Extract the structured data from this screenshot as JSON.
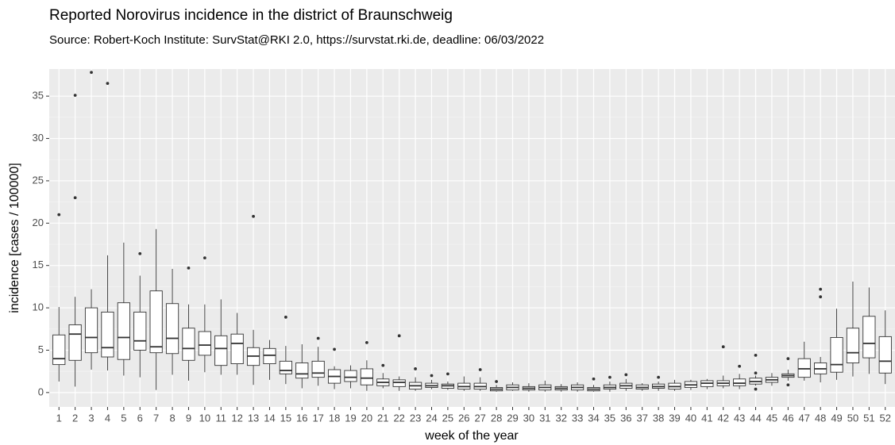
{
  "chart_data": {
    "type": "boxplot",
    "title": "Reported Norovirus incidence in the district of Braunschweig",
    "subtitle": "Source: Robert-Koch Institute: SurvStat@RKI 2.0, https://survstat.rki.de, deadline: 06/03/2022",
    "x_label": "week of the year",
    "y_label": "incidence [cases / 100000]",
    "categories": [
      "1",
      "2",
      "3",
      "4",
      "5",
      "6",
      "7",
      "8",
      "9",
      "10",
      "11",
      "12",
      "13",
      "14",
      "15",
      "16",
      "17",
      "18",
      "19",
      "20",
      "21",
      "22",
      "23",
      "24",
      "25",
      "26",
      "27",
      "28",
      "29",
      "30",
      "31",
      "32",
      "33",
      "34",
      "35",
      "36",
      "37",
      "38",
      "39",
      "40",
      "41",
      "42",
      "43",
      "44",
      "45",
      "46",
      "47",
      "48",
      "49",
      "50",
      "51",
      "52"
    ],
    "boxes": [
      {
        "low": 1.3,
        "q1": 3.3,
        "median": 4.0,
        "q3": 6.8,
        "high": 10.1,
        "outliers": [
          21.0
        ]
      },
      {
        "low": 0.7,
        "q1": 3.8,
        "median": 6.9,
        "q3": 8.0,
        "high": 11.3,
        "outliers": [
          23.0,
          35.1
        ]
      },
      {
        "low": 2.7,
        "q1": 4.7,
        "median": 6.5,
        "q3": 10.0,
        "high": 12.2,
        "outliers": [
          37.8
        ]
      },
      {
        "low": 2.6,
        "q1": 4.2,
        "median": 5.3,
        "q3": 9.5,
        "high": 16.2,
        "outliers": [
          36.5
        ]
      },
      {
        "low": 2.0,
        "q1": 3.9,
        "median": 6.5,
        "q3": 10.6,
        "high": 17.7,
        "outliers": []
      },
      {
        "low": 1.8,
        "q1": 5.0,
        "median": 6.1,
        "q3": 9.5,
        "high": 13.8,
        "outliers": [
          16.4
        ]
      },
      {
        "low": 0.3,
        "q1": 4.7,
        "median": 5.4,
        "q3": 12.0,
        "high": 19.3,
        "outliers": []
      },
      {
        "low": 2.1,
        "q1": 4.6,
        "median": 6.4,
        "q3": 10.5,
        "high": 14.6,
        "outliers": []
      },
      {
        "low": 1.4,
        "q1": 3.8,
        "median": 5.2,
        "q3": 7.6,
        "high": 10.4,
        "outliers": [
          14.7
        ]
      },
      {
        "low": 2.4,
        "q1": 4.4,
        "median": 5.6,
        "q3": 7.2,
        "high": 10.4,
        "outliers": [
          15.9
        ]
      },
      {
        "low": 2.1,
        "q1": 3.2,
        "median": 5.2,
        "q3": 6.7,
        "high": 11.0,
        "outliers": []
      },
      {
        "low": 2.1,
        "q1": 3.4,
        "median": 5.8,
        "q3": 6.9,
        "high": 9.4,
        "outliers": []
      },
      {
        "low": 0.9,
        "q1": 3.2,
        "median": 4.3,
        "q3": 5.3,
        "high": 7.4,
        "outliers": [
          20.8
        ]
      },
      {
        "low": 1.5,
        "q1": 3.4,
        "median": 4.4,
        "q3": 5.2,
        "high": 6.2,
        "outliers": []
      },
      {
        "low": 1.0,
        "q1": 2.2,
        "median": 2.6,
        "q3": 3.7,
        "high": 5.5,
        "outliers": [
          8.9
        ]
      },
      {
        "low": 0.5,
        "q1": 1.7,
        "median": 2.2,
        "q3": 3.5,
        "high": 5.7,
        "outliers": []
      },
      {
        "low": 0.8,
        "q1": 1.8,
        "median": 2.3,
        "q3": 3.7,
        "high": 5.4,
        "outliers": [
          6.4
        ]
      },
      {
        "low": 0.4,
        "q1": 1.1,
        "median": 1.9,
        "q3": 2.7,
        "high": 3.1,
        "outliers": [
          5.1
        ]
      },
      {
        "low": 0.5,
        "q1": 1.3,
        "median": 1.8,
        "q3": 2.6,
        "high": 3.2,
        "outliers": []
      },
      {
        "low": 0.2,
        "q1": 0.9,
        "median": 1.7,
        "q3": 2.8,
        "high": 3.8,
        "outliers": [
          5.9
        ]
      },
      {
        "low": 0.5,
        "q1": 0.8,
        "median": 1.2,
        "q3": 1.6,
        "high": 2.3,
        "outliers": [
          3.2
        ]
      },
      {
        "low": 0.2,
        "q1": 0.7,
        "median": 1.2,
        "q3": 1.5,
        "high": 1.9,
        "outliers": [
          6.7
        ]
      },
      {
        "low": 0.2,
        "q1": 0.4,
        "median": 0.8,
        "q3": 1.2,
        "high": 1.8,
        "outliers": [
          2.8
        ]
      },
      {
        "low": 0.4,
        "q1": 0.6,
        "median": 0.8,
        "q3": 1.1,
        "high": 1.5,
        "outliers": [
          2.0
        ]
      },
      {
        "low": 0.3,
        "q1": 0.5,
        "median": 0.8,
        "q3": 1.0,
        "high": 1.3,
        "outliers": [
          2.2
        ]
      },
      {
        "low": 0.2,
        "q1": 0.4,
        "median": 0.7,
        "q3": 1.1,
        "high": 1.9,
        "outliers": []
      },
      {
        "low": 0.2,
        "q1": 0.4,
        "median": 0.7,
        "q3": 1.1,
        "high": 1.8,
        "outliers": [
          2.7
        ]
      },
      {
        "low": 0.1,
        "q1": 0.2,
        "median": 0.4,
        "q3": 0.6,
        "high": 0.9,
        "outliers": [
          1.3
        ]
      },
      {
        "low": 0.2,
        "q1": 0.3,
        "median": 0.6,
        "q3": 0.9,
        "high": 1.2,
        "outliers": []
      },
      {
        "low": 0.1,
        "q1": 0.3,
        "median": 0.5,
        "q3": 0.7,
        "high": 1.1,
        "outliers": []
      },
      {
        "low": 0.1,
        "q1": 0.3,
        "median": 0.6,
        "q3": 0.9,
        "high": 1.4,
        "outliers": []
      },
      {
        "low": 0.1,
        "q1": 0.3,
        "median": 0.5,
        "q3": 0.7,
        "high": 1.0,
        "outliers": []
      },
      {
        "low": 0.1,
        "q1": 0.3,
        "median": 0.6,
        "q3": 0.9,
        "high": 1.2,
        "outliers": []
      },
      {
        "low": 0.1,
        "q1": 0.2,
        "median": 0.4,
        "q3": 0.6,
        "high": 0.9,
        "outliers": [
          1.6
        ]
      },
      {
        "low": 0.1,
        "q1": 0.4,
        "median": 0.6,
        "q3": 0.9,
        "high": 1.3,
        "outliers": [
          1.8
        ]
      },
      {
        "low": 0.2,
        "q1": 0.5,
        "median": 0.8,
        "q3": 1.1,
        "high": 1.6,
        "outliers": [
          2.1
        ]
      },
      {
        "low": 0.2,
        "q1": 0.4,
        "median": 0.6,
        "q3": 0.9,
        "high": 1.1,
        "outliers": []
      },
      {
        "low": 0.2,
        "q1": 0.5,
        "median": 0.7,
        "q3": 1.0,
        "high": 1.3,
        "outliers": [
          1.8
        ]
      },
      {
        "low": 0.2,
        "q1": 0.4,
        "median": 0.7,
        "q3": 1.1,
        "high": 1.5,
        "outliers": []
      },
      {
        "low": 0.3,
        "q1": 0.6,
        "median": 0.9,
        "q3": 1.3,
        "high": 1.5,
        "outliers": []
      },
      {
        "low": 0.4,
        "q1": 0.7,
        "median": 1.1,
        "q3": 1.4,
        "high": 1.6,
        "outliers": []
      },
      {
        "low": 0.5,
        "q1": 0.8,
        "median": 1.1,
        "q3": 1.4,
        "high": 2.0,
        "outliers": [
          5.4
        ]
      },
      {
        "low": 0.4,
        "q1": 0.8,
        "median": 1.1,
        "q3": 1.6,
        "high": 2.2,
        "outliers": [
          3.1
        ]
      },
      {
        "low": 0.8,
        "q1": 1.0,
        "median": 1.3,
        "q3": 1.7,
        "high": 2.0,
        "outliers": [
          2.3,
          4.4,
          0.4
        ]
      },
      {
        "low": 0.8,
        "q1": 1.2,
        "median": 1.5,
        "q3": 1.8,
        "high": 2.3,
        "outliers": []
      },
      {
        "low": 1.4,
        "q1": 1.8,
        "median": 2.0,
        "q3": 2.2,
        "high": 2.7,
        "outliers": [
          4.0,
          0.9
        ]
      },
      {
        "low": 1.4,
        "q1": 1.8,
        "median": 2.8,
        "q3": 4.0,
        "high": 6.0,
        "outliers": []
      },
      {
        "low": 1.2,
        "q1": 2.2,
        "median": 2.8,
        "q3": 3.5,
        "high": 4.2,
        "outliers": [
          11.3,
          12.2
        ]
      },
      {
        "low": 1.5,
        "q1": 2.4,
        "median": 3.3,
        "q3": 6.5,
        "high": 9.9,
        "outliers": []
      },
      {
        "low": 1.9,
        "q1": 3.5,
        "median": 4.7,
        "q3": 7.6,
        "high": 13.1,
        "outliers": []
      },
      {
        "low": 2.2,
        "q1": 4.1,
        "median": 5.8,
        "q3": 9.0,
        "high": 12.4,
        "outliers": []
      },
      {
        "low": 1.0,
        "q1": 2.3,
        "median": 3.7,
        "q3": 6.6,
        "high": 9.7,
        "outliers": []
      }
    ],
    "box_fill": "#ffffff",
    "box_stroke": "#333333",
    "ylim": [
      -1.7,
      38.2
    ],
    "yticks": [
      0,
      5,
      10,
      15,
      20,
      25,
      30,
      35
    ],
    "grid": true
  }
}
